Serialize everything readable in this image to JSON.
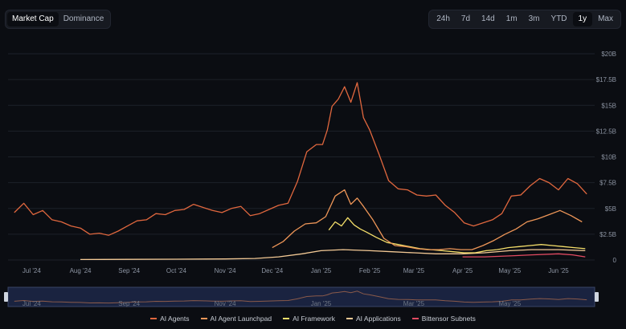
{
  "toolbar": {
    "tabs": [
      {
        "label": "Market Cap",
        "active": true
      },
      {
        "label": "Dominance",
        "active": false
      }
    ],
    "ranges": [
      {
        "label": "24h",
        "active": false
      },
      {
        "label": "7d",
        "active": false
      },
      {
        "label": "14d",
        "active": false
      },
      {
        "label": "1m",
        "active": false
      },
      {
        "label": "3m",
        "active": false
      },
      {
        "label": "YTD",
        "active": false
      },
      {
        "label": "1y",
        "active": true
      },
      {
        "label": "Max",
        "active": false
      }
    ]
  },
  "colors": {
    "background": "#0b0d12",
    "ai_agents": "#e0673e",
    "ai_agent_launchpad": "#ee9658",
    "ai_framework": "#f5df6a",
    "ai_applications": "#f3c995",
    "bittensor_subnets": "#e24b62",
    "grid": "#1d2129"
  },
  "chart_data": {
    "type": "line",
    "ylim": [
      0,
      20
    ],
    "y_unit": "billions USD",
    "yticks": [
      "0",
      "$2.5B",
      "$5B",
      "$7.5B",
      "$10B",
      "$12.5B",
      "$15B",
      "$17.5B",
      "$20B"
    ],
    "xticks": [
      "Jul '24",
      "Aug '24",
      "Sep '24",
      "Oct '24",
      "Nov '24",
      "Dec '24",
      "Jan '25",
      "Feb '25",
      "Mar '25",
      "Apr '25",
      "May '25",
      "Jun '25"
    ],
    "navigator_ticks": [
      "Jul '24",
      "Sep '24",
      "Nov '24",
      "Jan '25",
      "Mar '25",
      "May '25"
    ],
    "legend_position": "bottom",
    "grid": true,
    "series": [
      {
        "name": "AI Agents",
        "color_key": "ai_agents",
        "x": [
          "2024-06-20",
          "2024-06-26",
          "2024-07-02",
          "2024-07-08",
          "2024-07-14",
          "2024-07-20",
          "2024-07-26",
          "2024-08-01",
          "2024-08-07",
          "2024-08-13",
          "2024-08-19",
          "2024-08-25",
          "2024-08-31",
          "2024-09-06",
          "2024-09-12",
          "2024-09-18",
          "2024-09-24",
          "2024-09-30",
          "2024-10-06",
          "2024-10-12",
          "2024-10-18",
          "2024-10-24",
          "2024-10-30",
          "2024-11-05",
          "2024-11-11",
          "2024-11-17",
          "2024-11-23",
          "2024-11-29",
          "2024-12-05",
          "2024-12-11",
          "2024-12-17",
          "2024-12-23",
          "2024-12-29",
          "2025-01-02",
          "2025-01-05",
          "2025-01-08",
          "2025-01-12",
          "2025-01-16",
          "2025-01-20",
          "2025-01-24",
          "2025-01-28",
          "2025-02-01",
          "2025-02-07",
          "2025-02-13",
          "2025-02-19",
          "2025-02-25",
          "2025-03-03",
          "2025-03-09",
          "2025-03-15",
          "2025-03-21",
          "2025-03-27",
          "2025-04-02",
          "2025-04-08",
          "2025-04-14",
          "2025-04-20",
          "2025-04-26",
          "2025-05-02",
          "2025-05-08",
          "2025-05-14",
          "2025-05-20",
          "2025-05-26",
          "2025-06-01",
          "2025-06-07",
          "2025-06-13",
          "2025-06-19"
        ],
        "values": [
          4.6,
          5.5,
          4.4,
          4.8,
          3.9,
          3.7,
          3.3,
          3.1,
          2.5,
          2.6,
          2.4,
          2.8,
          3.3,
          3.8,
          3.9,
          4.5,
          4.4,
          4.8,
          4.9,
          5.4,
          5.1,
          4.8,
          4.6,
          5.0,
          5.2,
          4.3,
          4.5,
          4.9,
          5.3,
          5.5,
          7.6,
          10.5,
          11.2,
          11.2,
          12.6,
          14.9,
          15.6,
          16.8,
          15.3,
          17.2,
          13.8,
          12.6,
          10.2,
          7.7,
          6.9,
          6.8,
          6.3,
          6.2,
          6.3,
          5.3,
          4.6,
          3.6,
          3.3,
          3.6,
          3.9,
          4.5,
          6.2,
          6.3,
          7.2,
          7.9,
          7.5,
          6.8,
          7.9,
          7.4,
          6.4
        ]
      },
      {
        "name": "AI Agent Launchpad",
        "color_key": "ai_agent_launchpad",
        "x": [
          "2024-12-01",
          "2024-12-08",
          "2024-12-15",
          "2024-12-22",
          "2024-12-29",
          "2025-01-04",
          "2025-01-10",
          "2025-01-16",
          "2025-01-20",
          "2025-01-24",
          "2025-01-28",
          "2025-02-03",
          "2025-02-10",
          "2025-02-17",
          "2025-02-24",
          "2025-03-03",
          "2025-03-10",
          "2025-03-17",
          "2025-03-24",
          "2025-03-31",
          "2025-04-07",
          "2025-04-14",
          "2025-04-21",
          "2025-04-28",
          "2025-05-05",
          "2025-05-12",
          "2025-05-19",
          "2025-05-26",
          "2025-06-02",
          "2025-06-09",
          "2025-06-16"
        ],
        "values": [
          1.2,
          1.8,
          2.8,
          3.5,
          3.6,
          4.2,
          6.2,
          6.8,
          5.4,
          6.0,
          5.2,
          3.9,
          2.1,
          1.4,
          1.3,
          1.1,
          1.0,
          1.0,
          1.1,
          1.0,
          1.0,
          1.4,
          1.9,
          2.5,
          3.0,
          3.7,
          4.0,
          4.4,
          4.8,
          4.3,
          3.7
        ]
      },
      {
        "name": "AI Framework",
        "color_key": "ai_framework",
        "x": [
          "2025-01-06",
          "2025-01-10",
          "2025-01-14",
          "2025-01-18",
          "2025-01-22",
          "2025-01-26",
          "2025-01-30",
          "2025-02-05",
          "2025-02-12",
          "2025-02-19",
          "2025-02-26",
          "2025-03-05",
          "2025-03-12",
          "2025-03-19",
          "2025-03-26",
          "2025-04-02",
          "2025-04-09",
          "2025-04-16",
          "2025-04-23",
          "2025-04-30",
          "2025-05-07",
          "2025-05-14",
          "2025-05-21",
          "2025-05-28",
          "2025-06-04",
          "2025-06-11",
          "2025-06-18"
        ],
        "values": [
          2.9,
          3.7,
          3.3,
          4.1,
          3.4,
          3.0,
          2.7,
          2.2,
          1.7,
          1.5,
          1.3,
          1.1,
          1.0,
          0.9,
          0.8,
          0.7,
          0.7,
          0.9,
          1.0,
          1.2,
          1.3,
          1.4,
          1.5,
          1.4,
          1.3,
          1.2,
          1.1
        ]
      },
      {
        "name": "AI Applications",
        "color_key": "ai_applications",
        "x": [
          "2024-08-01",
          "2024-09-01",
          "2024-10-01",
          "2024-11-01",
          "2024-11-20",
          "2024-12-05",
          "2024-12-20",
          "2025-01-01",
          "2025-01-15",
          "2025-02-01",
          "2025-02-15",
          "2025-03-01",
          "2025-03-15",
          "2025-04-01",
          "2025-04-15",
          "2025-05-01",
          "2025-05-15",
          "2025-06-01",
          "2025-06-18"
        ],
        "values": [
          0.05,
          0.06,
          0.08,
          0.1,
          0.15,
          0.3,
          0.6,
          0.9,
          1.0,
          0.9,
          0.8,
          0.7,
          0.6,
          0.6,
          0.7,
          0.9,
          1.0,
          1.0,
          0.9
        ]
      },
      {
        "name": "Bittensor Subnets",
        "color_key": "bittensor_subnets",
        "x": [
          "2025-04-01",
          "2025-04-15",
          "2025-05-01",
          "2025-05-15",
          "2025-06-01",
          "2025-06-10",
          "2025-06-18"
        ],
        "values": [
          0.3,
          0.3,
          0.4,
          0.5,
          0.6,
          0.5,
          0.3
        ]
      }
    ]
  }
}
